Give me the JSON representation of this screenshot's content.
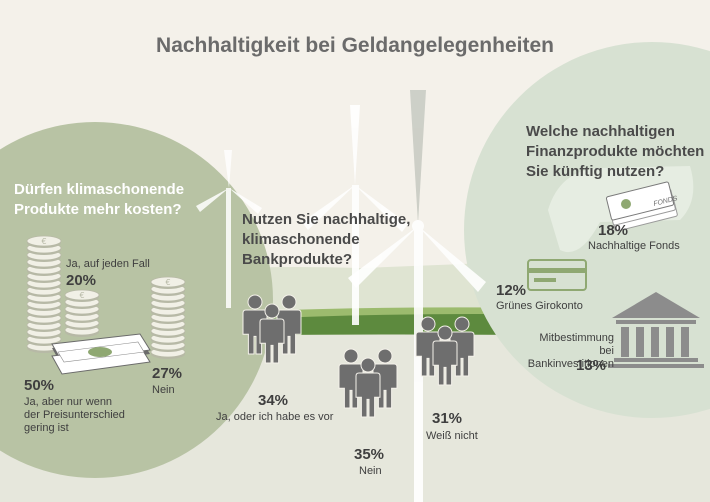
{
  "title": "Nachhaltigkeit bei Geldangelegenheiten",
  "chart_data": [
    {
      "type": "pictogram",
      "title": "Dürfen klimaschonende Produkte mehr kosten?",
      "categories": [
        "Ja, auf jeden Fall",
        "Ja, aber nur wenn der Preisunterschied gering ist",
        "Nein"
      ],
      "values": [
        20,
        50,
        27
      ],
      "value_labels": [
        "20%",
        "50%",
        "27%"
      ],
      "unit": "%"
    },
    {
      "type": "pictogram",
      "title": "Nutzen Sie nachhaltige, klimaschonende Bankprodukte?",
      "categories": [
        "Ja, oder ich habe es vor",
        "Nein",
        "Weiß nicht"
      ],
      "values": [
        34,
        35,
        31
      ],
      "value_labels": [
        "34%",
        "35%",
        "31%"
      ],
      "unit": "%"
    },
    {
      "type": "pictogram",
      "title": "Welche nachhaltigen Finanzprodukte möchten Sie künftig nutzen?",
      "categories": [
        "Nachhaltige Fonds",
        "Grünes Girokonto",
        "Mitbestimmung bei Bankinvestitionen"
      ],
      "values": [
        18,
        12,
        13
      ],
      "value_labels": [
        "18%",
        "12%",
        "13%"
      ],
      "unit": "%",
      "icon_text": "FONDS"
    }
  ],
  "left": {
    "q_line1": "Dürfen klimaschonende",
    "q_line2": "Produkte mehr kosten?",
    "a1_pct": "20%",
    "a1_label": "Ja, auf jeden Fall",
    "a2_pct": "50%",
    "a2_l1": "Ja, aber nur wenn",
    "a2_l2": "der Preisunterschied",
    "a2_l3": "gering ist",
    "a3_pct": "27%",
    "a3_label": "Nein"
  },
  "middle": {
    "q_line1": "Nutzen Sie nachhaltige,",
    "q_line2": "klimaschonende",
    "q_line3": "Bankprodukte?",
    "a1_pct": "34%",
    "a1_label": "Ja, oder ich habe es vor",
    "a2_pct": "35%",
    "a2_label": "Nein",
    "a3_pct": "31%",
    "a3_label": "Weiß nicht"
  },
  "right": {
    "q_line1": "Welche nachhaltigen",
    "q_line2": "Finanzprodukte möchten",
    "q_line3": "Sie künftig nutzen?",
    "a1_pct": "18%",
    "a1_label": "Nachhaltige Fonds",
    "a2_pct": "12%",
    "a2_label": "Grünes Girokonto",
    "a3_l1": "Mitbestimmung bei",
    "a3_l2": "Bankinvestitionen",
    "a3_pct": "13%",
    "fonds_text": "FONDS"
  },
  "colors": {
    "background": "#f4f1ea",
    "left_circle": "#b8c3a4",
    "right_circle": "#d7e1d2",
    "field_dark": "#5d8a3e",
    "field_light": "#9cbb6e",
    "people": "#6e6e6e",
    "turbine": "#ffffff",
    "coin": "#f1f0e6",
    "coin_stroke": "#b7b9a6",
    "temple": "#8c8c8c",
    "card": "#8fa872"
  }
}
